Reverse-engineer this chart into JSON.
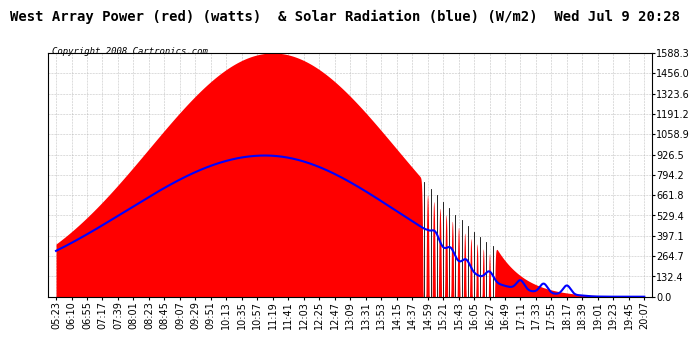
{
  "title": "West Array Power (red) (watts)  & Solar Radiation (blue) (W/m2)  Wed Jul 9 20:28",
  "copyright": "Copyright 2008 Cartronics.com",
  "background_color": "#ffffff",
  "plot_bg_color": "#ffffff",
  "y_max": 1588.3,
  "y_min": 0.0,
  "ytick_values": [
    0.0,
    132.4,
    264.7,
    397.1,
    529.4,
    661.8,
    794.2,
    926.5,
    1058.9,
    1191.2,
    1323.6,
    1456.0,
    1588.3
  ],
  "x_labels": [
    "05:23",
    "06:10",
    "06:55",
    "07:17",
    "07:39",
    "08:01",
    "08:23",
    "08:45",
    "09:07",
    "09:29",
    "09:51",
    "10:13",
    "10:35",
    "10:57",
    "11:19",
    "11:41",
    "12:03",
    "12:25",
    "12:47",
    "13:09",
    "13:31",
    "13:53",
    "14:15",
    "14:37",
    "14:59",
    "15:21",
    "15:43",
    "16:05",
    "16:27",
    "16:49",
    "17:11",
    "17:33",
    "17:55",
    "18:17",
    "18:39",
    "19:01",
    "19:23",
    "19:45",
    "20:07"
  ],
  "red_fill_color": "#ff0000",
  "blue_line_color": "#0000ff",
  "grid_color": "#aaaaaa",
  "border_color": "#000000",
  "title_font_size": 10,
  "copyright_font_size": 6.5,
  "tick_font_size": 7
}
